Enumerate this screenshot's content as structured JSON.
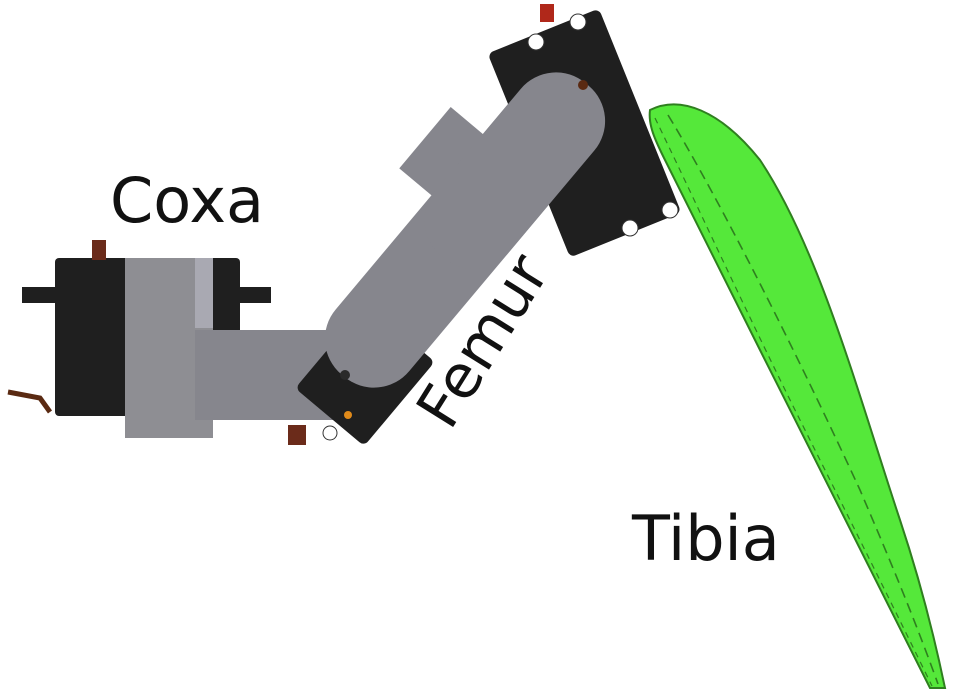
{
  "labels": {
    "coxa": "Coxa",
    "femur": "Femur",
    "tibia": "Tibia"
  },
  "colors": {
    "background": "#ffffff",
    "servo_body": "#1f1f1f",
    "bracket": "#8e8e93",
    "bracket_light": "#a9a9b2",
    "femur_link": "#86868d",
    "tibia_fill": "#55e83a",
    "tibia_stroke": "#2f7f1f",
    "label_text": "#111111"
  }
}
